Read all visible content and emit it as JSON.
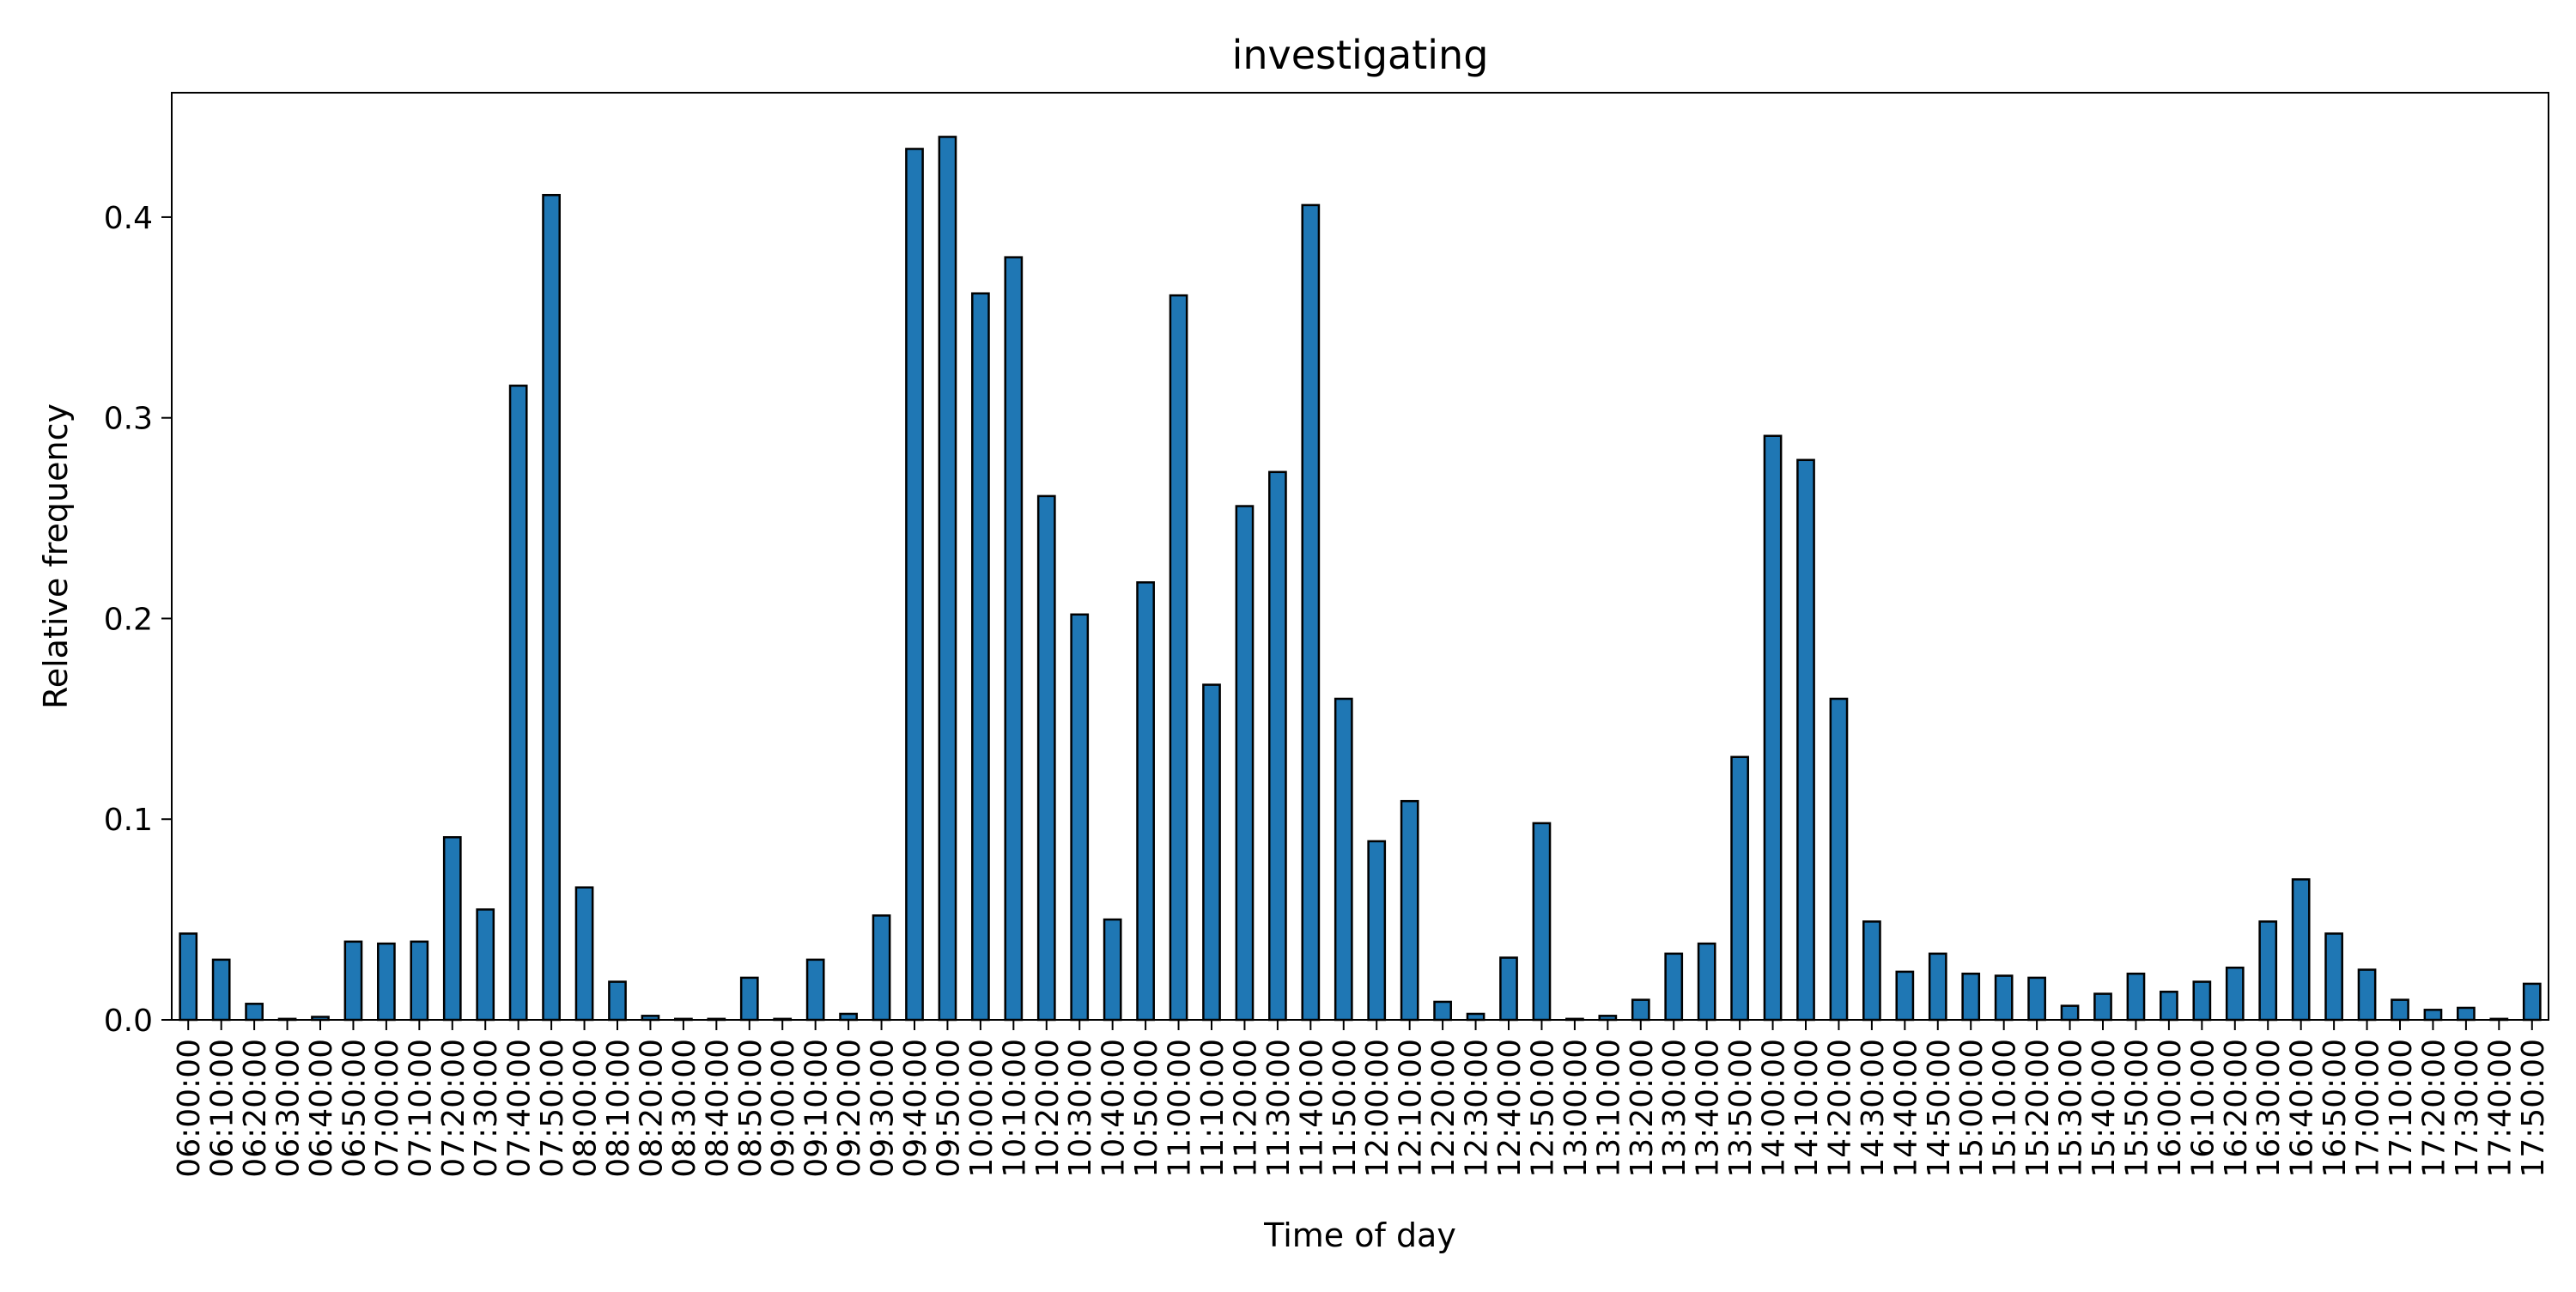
{
  "chart_data": {
    "type": "bar",
    "title": "investigating",
    "xlabel": "Time of day",
    "ylabel": "Relative frequency",
    "ylim": [
      0,
      0.462
    ],
    "yticks": [
      0.0,
      0.1,
      0.2,
      0.3,
      0.4
    ],
    "ytick_labels": [
      "0.0",
      "0.1",
      "0.2",
      "0.3",
      "0.4"
    ],
    "grid": false,
    "legend": "none",
    "bar_color": "#1f77b4",
    "edge_color": "#000000",
    "categories": [
      "06:00:00",
      "06:10:00",
      "06:20:00",
      "06:30:00",
      "06:40:00",
      "06:50:00",
      "07:00:00",
      "07:10:00",
      "07:20:00",
      "07:30:00",
      "07:40:00",
      "07:50:00",
      "08:00:00",
      "08:10:00",
      "08:20:00",
      "08:30:00",
      "08:40:00",
      "08:50:00",
      "09:00:00",
      "09:10:00",
      "09:20:00",
      "09:30:00",
      "09:40:00",
      "09:50:00",
      "10:00:00",
      "10:10:00",
      "10:20:00",
      "10:30:00",
      "10:40:00",
      "10:50:00",
      "11:00:00",
      "11:10:00",
      "11:20:00",
      "11:30:00",
      "11:40:00",
      "11:50:00",
      "12:00:00",
      "12:10:00",
      "12:20:00",
      "12:30:00",
      "12:40:00",
      "12:50:00",
      "13:00:00",
      "13:10:00",
      "13:20:00",
      "13:30:00",
      "13:40:00",
      "13:50:00",
      "14:00:00",
      "14:10:00",
      "14:20:00",
      "14:30:00",
      "14:40:00",
      "14:50:00",
      "15:00:00",
      "15:10:00",
      "15:20:00",
      "15:30:00",
      "15:40:00",
      "15:50:00",
      "16:00:00",
      "16:10:00",
      "16:20:00",
      "16:30:00",
      "16:40:00",
      "16:50:00",
      "17:00:00",
      "17:10:00",
      "17:20:00",
      "17:30:00",
      "17:40:00",
      "17:50:00"
    ],
    "values": [
      0.043,
      0.03,
      0.008,
      0.0005,
      0.0015,
      0.039,
      0.038,
      0.039,
      0.091,
      0.055,
      0.316,
      0.411,
      0.066,
      0.019,
      0.002,
      0.0005,
      0.0005,
      0.021,
      0.0005,
      0.03,
      0.003,
      0.052,
      0.434,
      0.44,
      0.362,
      0.38,
      0.261,
      0.202,
      0.05,
      0.218,
      0.361,
      0.167,
      0.256,
      0.273,
      0.406,
      0.16,
      0.089,
      0.109,
      0.009,
      0.003,
      0.031,
      0.098,
      0.0005,
      0.002,
      0.01,
      0.033,
      0.038,
      0.131,
      0.291,
      0.279,
      0.16,
      0.049,
      0.024,
      0.033,
      0.023,
      0.022,
      0.021,
      0.007,
      0.013,
      0.023,
      0.014,
      0.019,
      0.026,
      0.049,
      0.07,
      0.043,
      0.025,
      0.01,
      0.005,
      0.006,
      0.0005,
      0.018
    ]
  }
}
